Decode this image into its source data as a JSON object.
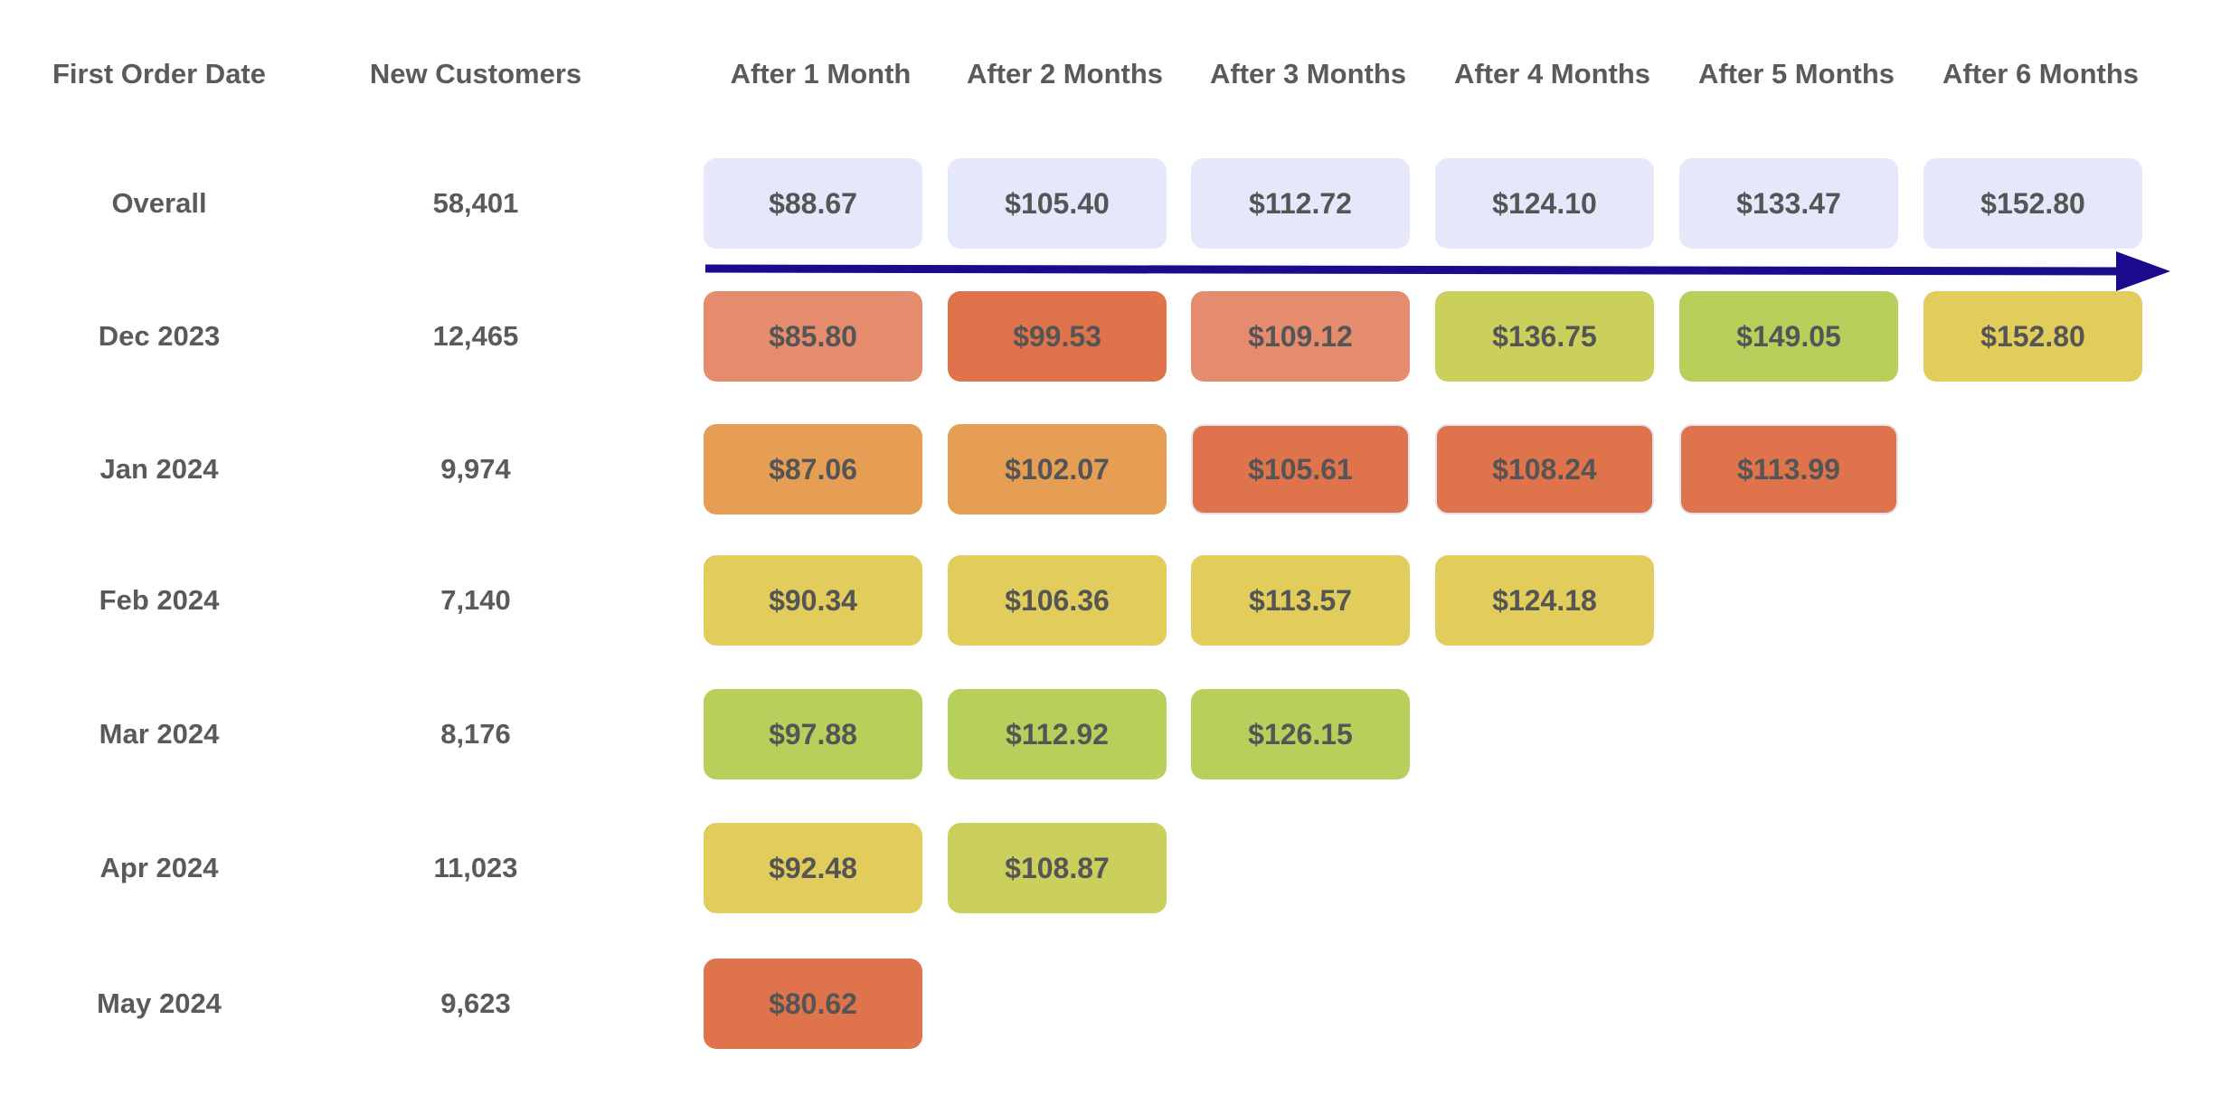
{
  "chart_data": {
    "type": "table",
    "headers": {
      "date": "First Order Date",
      "customers": "New Customers",
      "periods": [
        "After 1 Month",
        "After 2 Months",
        "After 3 Months",
        "After 4 Months",
        "After 5 Months",
        "After 6 Months"
      ]
    },
    "rows": [
      {
        "label": "Overall",
        "customers": "58,401",
        "values": [
          "$88.67",
          "$105.40",
          "$112.72",
          "$124.10",
          "$133.47",
          "$152.80"
        ],
        "colors": [
          "#e5e8fb",
          "#e5e8fb",
          "#e5e8fb",
          "#e5e8fb",
          "#e5e8fb",
          "#e5e8fb"
        ]
      },
      {
        "label": "Dec 2023",
        "customers": "12,465",
        "values": [
          "$85.80",
          "$99.53",
          "$109.12",
          "$136.75",
          "$149.05",
          "$152.80"
        ],
        "colors": [
          "#e58c6f",
          "#df734b",
          "#e58c6f",
          "#cbd05d",
          "#b7cf5b",
          "#e1cc5c"
        ]
      },
      {
        "label": "Jan 2024",
        "customers": "9,974",
        "values": [
          "$87.06",
          "$102.07",
          "$105.61",
          "$108.24",
          "$113.99"
        ],
        "colors": [
          "#e69d54",
          "#e69d54",
          "#df734b",
          "#df734b",
          "#df734b"
        ]
      },
      {
        "label": "Feb 2024",
        "customers": "7,140",
        "values": [
          "$90.34",
          "$106.36",
          "$113.57",
          "$124.18"
        ],
        "colors": [
          "#e1cc5c",
          "#e1cc5c",
          "#e1cc5c",
          "#e1cc5c"
        ]
      },
      {
        "label": "Mar 2024",
        "customers": "8,176",
        "values": [
          "$97.88",
          "$112.92",
          "$126.15"
        ],
        "colors": [
          "#b7cf5b",
          "#b7cf5b",
          "#b7cf5b"
        ]
      },
      {
        "label": "Apr 2024",
        "customers": "11,023",
        "values": [
          "$92.48",
          "$108.87"
        ],
        "colors": [
          "#e1cc5c",
          "#cbd05d"
        ]
      },
      {
        "label": "May 2024",
        "customers": "9,623",
        "values": [
          "$80.62"
        ],
        "colors": [
          "#df734b"
        ]
      }
    ],
    "arrow_color": "#1a0a8c"
  }
}
